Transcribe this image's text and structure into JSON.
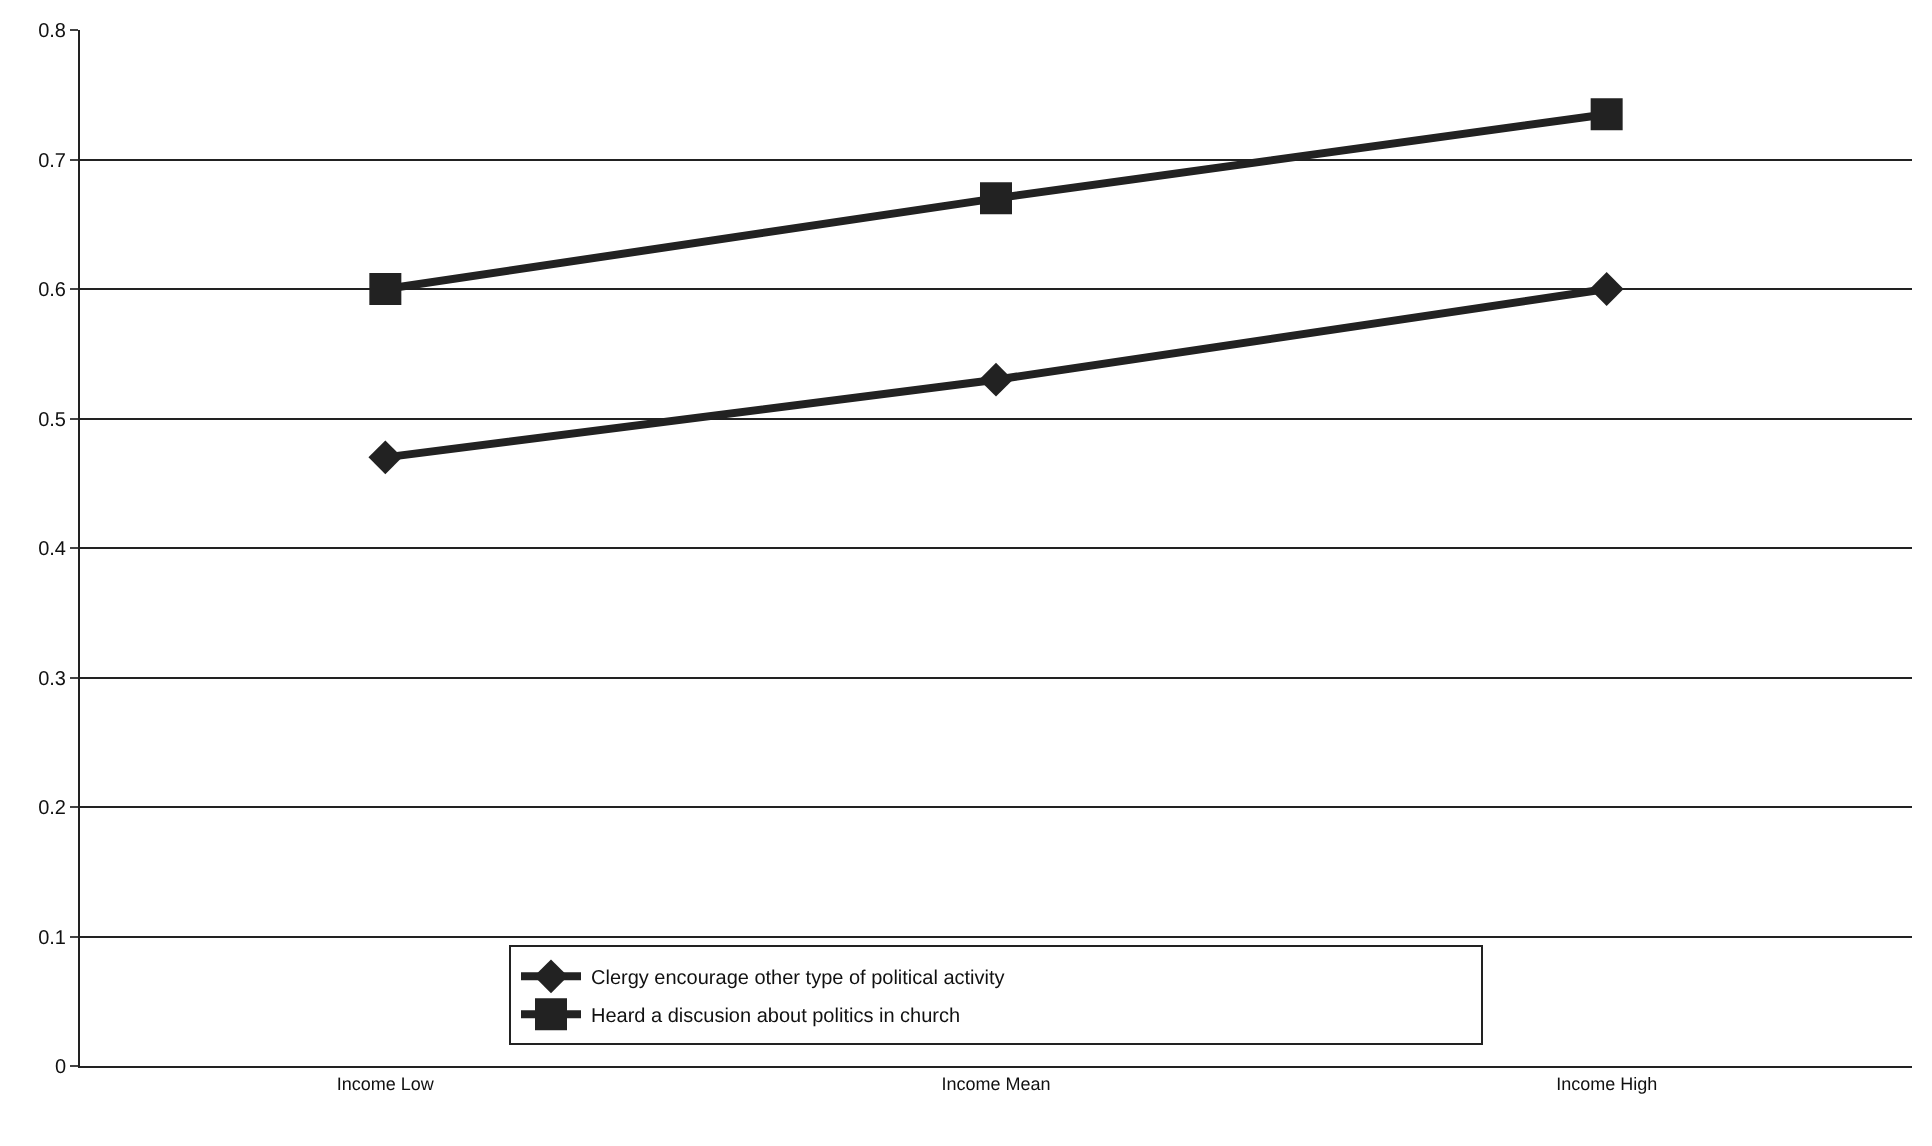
{
  "chart_data": {
    "type": "line",
    "categories": [
      "Income Low",
      "Income Mean",
      "Income High"
    ],
    "series": [
      {
        "name": "Clergy encourage other type of political activity",
        "color": "#222222",
        "marker": "diamond",
        "values": [
          0.47,
          0.53,
          0.6
        ]
      },
      {
        "name": "Heard a discusion about politics in church",
        "color": "#222222",
        "marker": "square",
        "values": [
          0.6,
          0.67,
          0.735
        ]
      }
    ],
    "ylim": [
      0,
      0.8
    ],
    "yticks": [
      0,
      0.1,
      0.2,
      0.3,
      0.4,
      0.5,
      0.6,
      0.7,
      0.8
    ],
    "grid": "y",
    "legend": "bottom",
    "line_style": "solid"
  }
}
